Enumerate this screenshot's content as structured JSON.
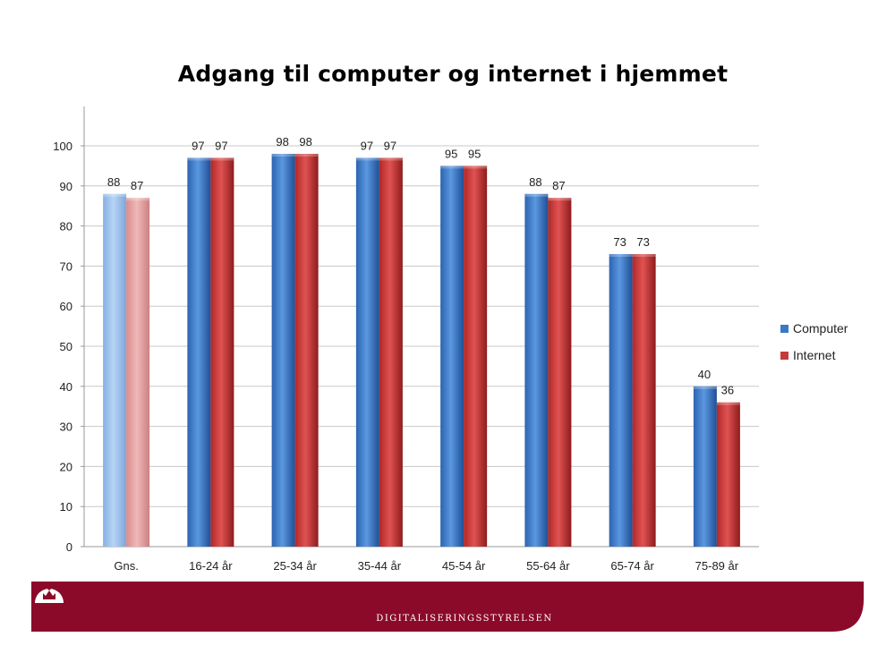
{
  "chart_data": {
    "type": "bar",
    "title": "Adgang til computer og internet i hjemmet",
    "categories": [
      "Gns.",
      "16-24 år",
      "25-34 år",
      "35-44 år",
      "45-54 år",
      "55-64 år",
      "65-74 år",
      "75-89 år"
    ],
    "series": [
      {
        "name": "Computer",
        "values": [
          88,
          97,
          98,
          97,
          95,
          88,
          73,
          40
        ],
        "color": "#3a78c8",
        "highlight_first_color": "#9ec2ee"
      },
      {
        "name": "Internet",
        "values": [
          87,
          97,
          98,
          97,
          95,
          87,
          73,
          36
        ],
        "color": "#c83a3a",
        "highlight_first_color": "#e8a6a6"
      }
    ],
    "ylim": [
      0,
      100
    ],
    "yticks": [
      0,
      10,
      20,
      30,
      40,
      50,
      60,
      70,
      80,
      90,
      100
    ],
    "grid": true,
    "legend_position": "right"
  },
  "footer": {
    "org_name": "Digitaliseringsstyrelsen",
    "brand_color": "#8b0a2a"
  }
}
